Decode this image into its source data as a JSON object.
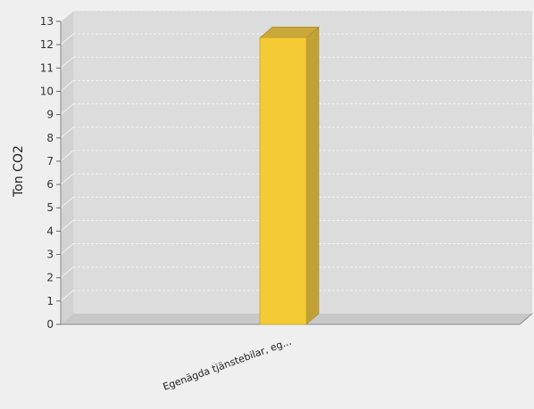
{
  "chart_data": {
    "type": "bar",
    "categories": [
      "Egenägda tjänstebilar, eg..."
    ],
    "values": [
      12.3
    ],
    "ylabel": "Ton CO2",
    "xlabel": "",
    "ylim": [
      0,
      13
    ],
    "yticks": [
      0,
      1,
      2,
      3,
      4,
      5,
      6,
      7,
      8,
      9,
      10,
      11,
      12,
      13
    ],
    "grid": true,
    "three_d": true,
    "colors": {
      "bar_front": "#f5cb35",
      "bar_side": "#c1a036",
      "bar_top": "#c9a73a",
      "plot_back": "#dcdcdc",
      "plot_floor": "#c8c8c8",
      "plot_wall": "#d2d2d2",
      "gridline": "#f2f2f2",
      "page_bg": "#efefef"
    }
  }
}
